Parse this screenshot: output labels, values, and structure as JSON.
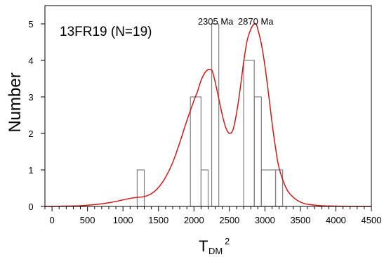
{
  "chart_data": {
    "type": "bar",
    "annotation": "13FR19 (N=19)",
    "xlabel": {
      "main": "T",
      "subscript": "DM",
      "superscript": "2"
    },
    "ylabel": "Number",
    "xlim": [
      -100,
      4500
    ],
    "ylim": [
      0,
      5.5
    ],
    "x_ticks": [
      0,
      500,
      1000,
      1500,
      2000,
      2500,
      3000,
      3500,
      4000,
      4500
    ],
    "x_tick_labels": [
      "0",
      "500",
      "1000",
      "1500",
      "2000",
      "2500",
      "3000",
      "3500",
      "4000",
      "4500"
    ],
    "x_minor_tick_step": 100,
    "y_ticks": [
      0,
      1,
      2,
      3,
      4,
      5
    ],
    "y_tick_labels": [
      "0",
      "1",
      "2",
      "3",
      "4",
      "5"
    ],
    "histogram_bins": [
      {
        "start": 1200,
        "end": 1300,
        "count": 1
      },
      {
        "start": 1950,
        "end": 2100,
        "count": 3
      },
      {
        "start": 2100,
        "end": 2200,
        "count": 1
      },
      {
        "start": 2250,
        "end": 2350,
        "count": 5
      },
      {
        "start": 2700,
        "end": 2850,
        "count": 4
      },
      {
        "start": 2850,
        "end": 2950,
        "count": 3
      },
      {
        "start": 2950,
        "end": 3150,
        "count": 1
      },
      {
        "start": 3150,
        "end": 3250,
        "count": 1
      }
    ],
    "density_curve": {
      "x": [
        -100,
        0,
        200,
        400,
        600,
        800,
        1000,
        1100,
        1200,
        1300,
        1400,
        1500,
        1600,
        1700,
        1800,
        1900,
        2000,
        2050,
        2100,
        2150,
        2200,
        2230,
        2260,
        2300,
        2350,
        2400,
        2450,
        2500,
        2550,
        2600,
        2650,
        2700,
        2750,
        2800,
        2850,
        2880,
        2900,
        2950,
        3000,
        3050,
        3100,
        3150,
        3200,
        3300,
        3400,
        3500,
        3600,
        3800,
        4000,
        4200,
        4500
      ],
      "y": [
        0,
        0,
        0.01,
        0.02,
        0.05,
        0.1,
        0.18,
        0.22,
        0.25,
        0.27,
        0.35,
        0.52,
        0.8,
        1.2,
        1.75,
        2.35,
        2.9,
        3.15,
        3.45,
        3.65,
        3.75,
        3.75,
        3.7,
        3.4,
        2.95,
        2.5,
        2.15,
        2.0,
        2.1,
        2.55,
        3.2,
        3.95,
        4.55,
        4.85,
        5.0,
        4.98,
        4.85,
        4.45,
        3.85,
        3.1,
        2.3,
        1.6,
        1.05,
        0.5,
        0.25,
        0.12,
        0.06,
        0.02,
        0.01,
        0,
        0
      ]
    },
    "peak_labels": [
      {
        "text": "2305 Ma",
        "x": 2305
      },
      {
        "text": "2870 Ma",
        "x": 2870
      }
    ],
    "bar_color": "#808080",
    "curve_color": "#cc1a1a",
    "frame_color": "#000000",
    "grid": false,
    "legend": "none"
  }
}
